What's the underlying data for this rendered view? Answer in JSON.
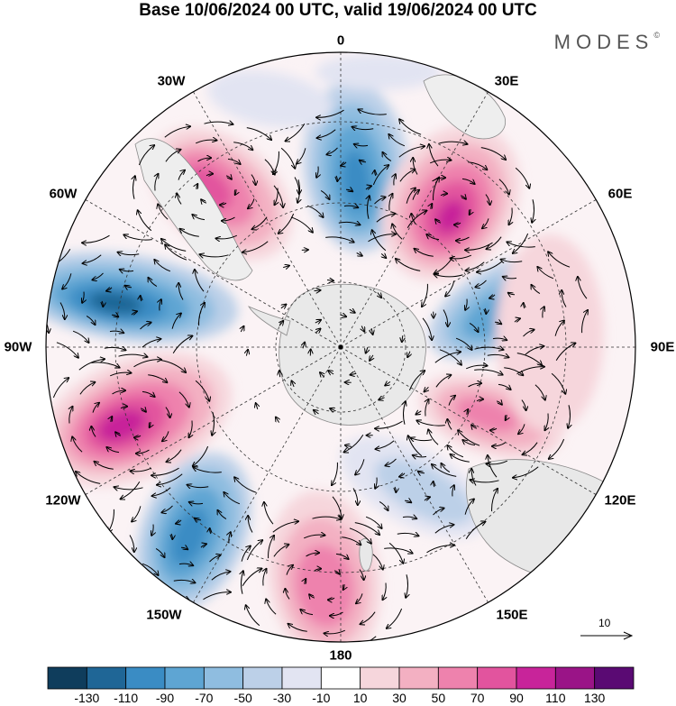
{
  "title": "Base 10/06/2024 00 UTC, valid 19/06/2024 00 UTC",
  "brand": {
    "name": "MODES",
    "mark": "©"
  },
  "longitude_labels": [
    {
      "key": "lon-0",
      "text": "0"
    },
    {
      "key": "lon-30e",
      "text": "30E"
    },
    {
      "key": "lon-60e",
      "text": "60E"
    },
    {
      "key": "lon-90e",
      "text": "90E"
    },
    {
      "key": "lon-120e",
      "text": "120E"
    },
    {
      "key": "lon-150e",
      "text": "150E"
    },
    {
      "key": "lon-180",
      "text": "180"
    },
    {
      "key": "lon-150w",
      "text": "150W"
    },
    {
      "key": "lon-120w",
      "text": "120W"
    },
    {
      "key": "lon-90w",
      "text": "90W"
    },
    {
      "key": "lon-60w",
      "text": "60W"
    },
    {
      "key": "lon-30w",
      "text": "30W"
    }
  ],
  "reference_vector": {
    "label": "10"
  },
  "colorbar": {
    "colors": [
      "#0f3d5c",
      "#1f6696",
      "#3a8cc4",
      "#5ea5d3",
      "#8fbde0",
      "#bcd0e8",
      "#e2e4f2",
      "#ffffff",
      "#f6d6dc",
      "#f3b0c2",
      "#ee82ad",
      "#e2549e",
      "#c8249a",
      "#9a1487",
      "#5a0a73"
    ],
    "ticks": [
      "-130",
      "-110",
      "-90",
      "-70",
      "-50",
      "-30",
      "-10",
      "10",
      "30",
      "50",
      "70",
      "90",
      "110",
      "130"
    ]
  },
  "colors": {
    "land": "#e9e9e9",
    "coast": "#8a8a8a",
    "grid": "#333333"
  }
}
